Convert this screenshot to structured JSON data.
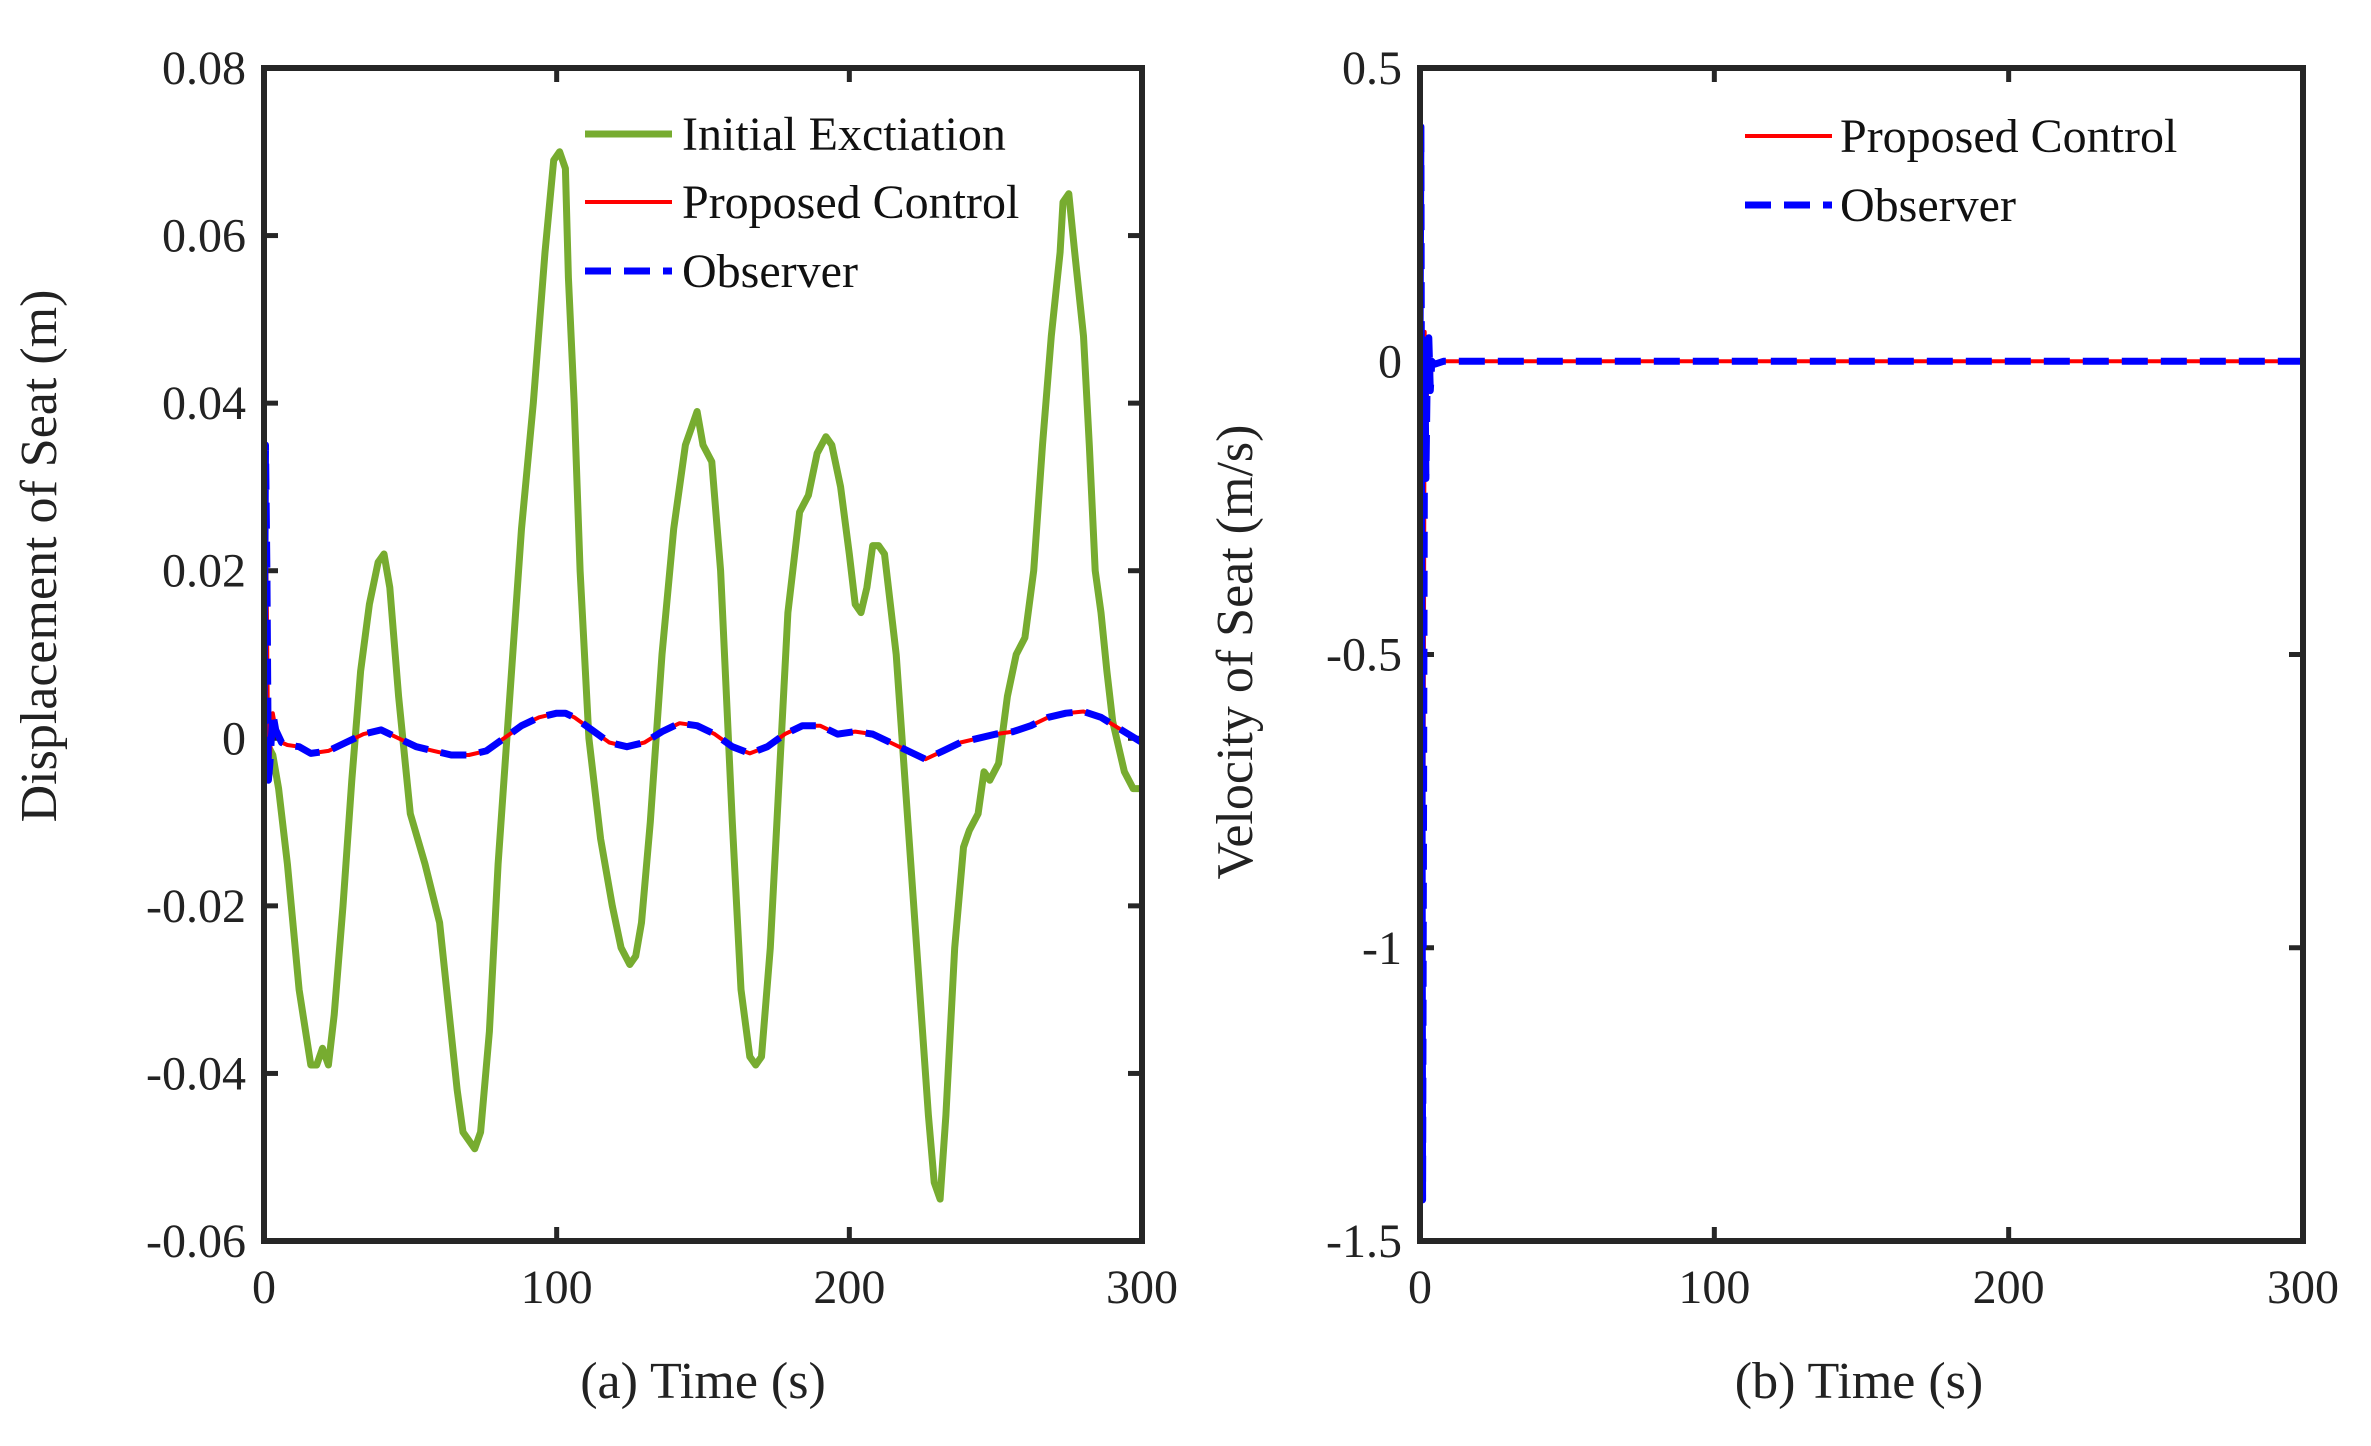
{
  "chart_data": [
    {
      "type": "line",
      "panel": "a",
      "xlabel": "(a) Time (s)",
      "ylabel": "Displacement of Seat (m)",
      "xlim": [
        0,
        300
      ],
      "ylim": [
        -0.06,
        0.08
      ],
      "xticks": [
        0,
        100,
        200,
        300
      ],
      "xtick_labels": [
        "0",
        "100",
        "200",
        "300"
      ],
      "yticks": [
        -0.06,
        -0.04,
        -0.02,
        0,
        0.02,
        0.04,
        0.06,
        0.08
      ],
      "ytick_labels": [
        "-0.06",
        "-0.04",
        "-0.02",
        "0",
        "0.02",
        "0.04",
        "0.06",
        "0.08"
      ],
      "legend_position": "top-right",
      "series": [
        {
          "name": "Initial Exctiation",
          "color": "#77ac30",
          "style": "solid",
          "x": [
            0,
            3,
            5,
            8,
            12,
            16,
            18,
            20,
            22,
            24,
            27,
            30,
            33,
            36,
            39,
            41,
            43,
            46,
            50,
            55,
            60,
            63,
            66,
            68,
            70,
            72,
            74,
            77,
            80,
            84,
            88,
            92,
            96,
            99,
            101,
            103,
            104,
            106,
            108,
            111,
            115,
            119,
            122,
            125,
            127,
            129,
            132,
            136,
            140,
            144,
            146,
            148,
            150,
            153,
            156,
            160,
            163,
            166,
            168,
            170,
            173,
            176,
            179,
            183,
            186,
            189,
            192,
            194,
            197,
            200,
            202,
            204,
            206,
            208,
            210,
            212,
            216,
            220,
            224,
            227,
            229,
            231,
            233,
            236,
            239,
            241,
            244,
            246,
            248,
            251,
            254,
            257,
            260,
            263,
            266,
            269,
            272,
            273,
            275,
            277,
            280,
            282,
            284,
            286,
            288,
            290,
            294,
            297,
            299
          ],
          "y": [
            0.0,
            -0.002,
            -0.006,
            -0.015,
            -0.03,
            -0.039,
            -0.039,
            -0.037,
            -0.039,
            -0.033,
            -0.02,
            -0.005,
            0.008,
            0.016,
            0.021,
            0.022,
            0.018,
            0.005,
            -0.009,
            -0.015,
            -0.022,
            -0.032,
            -0.042,
            -0.047,
            -0.048,
            -0.049,
            -0.047,
            -0.035,
            -0.015,
            0.005,
            0.025,
            0.04,
            0.058,
            0.069,
            0.07,
            0.068,
            0.055,
            0.04,
            0.02,
            0.0,
            -0.012,
            -0.02,
            -0.025,
            -0.027,
            -0.026,
            -0.022,
            -0.01,
            0.01,
            0.025,
            0.035,
            0.037,
            0.039,
            0.035,
            0.033,
            0.02,
            -0.01,
            -0.03,
            -0.038,
            -0.039,
            -0.038,
            -0.025,
            -0.005,
            0.015,
            0.027,
            0.029,
            0.034,
            0.036,
            0.035,
            0.03,
            0.022,
            0.016,
            0.015,
            0.018,
            0.023,
            0.023,
            0.022,
            0.01,
            -0.01,
            -0.03,
            -0.045,
            -0.053,
            -0.055,
            -0.045,
            -0.025,
            -0.013,
            -0.011,
            -0.009,
            -0.004,
            -0.005,
            -0.003,
            0.005,
            0.01,
            0.012,
            0.02,
            0.035,
            0.048,
            0.058,
            0.064,
            0.065,
            0.058,
            0.048,
            0.035,
            0.02,
            0.015,
            0.008,
            0.002,
            -0.004,
            -0.006,
            -0.006
          ]
        },
        {
          "name": "Proposed Control",
          "color": "#ff0000",
          "style": "solid",
          "x": [
            0,
            0.5,
            1,
            1.5,
            2,
            3,
            4,
            6,
            8,
            12,
            16,
            22,
            28,
            34,
            40,
            46,
            52,
            58,
            64,
            70,
            76,
            82,
            88,
            94,
            100,
            103,
            106,
            112,
            118,
            124,
            130,
            136,
            142,
            148,
            154,
            160,
            166,
            172,
            178,
            184,
            190,
            196,
            202,
            208,
            214,
            220,
            226,
            232,
            238,
            244,
            250,
            256,
            262,
            268,
            274,
            280,
            286,
            292,
            300
          ],
          "y": [
            0.0,
            0.03,
            0.015,
            -0.005,
            -0.002,
            0.003,
            0.001,
            -0.0005,
            -0.0008,
            -0.001,
            -0.0018,
            -0.0015,
            -0.0005,
            0.0005,
            0.001,
            0.0,
            -0.001,
            -0.0015,
            -0.002,
            -0.002,
            -0.0015,
            0.0,
            0.0015,
            0.0025,
            0.003,
            0.003,
            0.0025,
            0.001,
            -0.0005,
            -0.001,
            -0.0005,
            0.0008,
            0.0018,
            0.0015,
            0.0005,
            -0.001,
            -0.0018,
            -0.001,
            0.0005,
            0.0015,
            0.0015,
            0.0005,
            0.0008,
            0.0005,
            -0.0005,
            -0.0015,
            -0.0025,
            -0.0015,
            -0.0005,
            0.0,
            0.0005,
            0.0008,
            0.0015,
            0.0025,
            0.003,
            0.0032,
            0.0025,
            0.0012,
            -0.0005
          ]
        },
        {
          "name": "Observer",
          "color": "#0000ff",
          "style": "dashed",
          "x": [
            0,
            0.5,
            1,
            1.5,
            2,
            3,
            4,
            6,
            8,
            12,
            16,
            22,
            28,
            34,
            40,
            46,
            52,
            58,
            64,
            70,
            76,
            82,
            88,
            94,
            100,
            103,
            106,
            112,
            118,
            124,
            130,
            136,
            142,
            148,
            154,
            160,
            166,
            172,
            178,
            184,
            190,
            196,
            202,
            208,
            214,
            220,
            226,
            232,
            238,
            244,
            250,
            256,
            262,
            268,
            274,
            280,
            286,
            292,
            300
          ],
          "y": [
            0.0,
            0.035,
            0.02,
            -0.005,
            -0.003,
            0.003,
            0.001,
            -0.0005,
            -0.0008,
            -0.001,
            -0.0018,
            -0.0015,
            -0.0005,
            0.0005,
            0.001,
            0.0,
            -0.001,
            -0.0015,
            -0.002,
            -0.002,
            -0.0015,
            0.0,
            0.0015,
            0.0025,
            0.003,
            0.003,
            0.0025,
            0.001,
            -0.0005,
            -0.001,
            -0.0005,
            0.0008,
            0.0018,
            0.0015,
            0.0005,
            -0.001,
            -0.0018,
            -0.001,
            0.0005,
            0.0015,
            0.0015,
            0.0005,
            0.0008,
            0.0005,
            -0.0005,
            -0.0015,
            -0.0025,
            -0.0015,
            -0.0005,
            0.0,
            0.0005,
            0.0008,
            0.0015,
            0.0025,
            0.003,
            0.0032,
            0.0025,
            0.0012,
            -0.0005
          ]
        }
      ]
    },
    {
      "type": "line",
      "panel": "b",
      "xlabel": "(b) Time (s)",
      "ylabel": "Velocity of Seat (m/s)",
      "xlim": [
        0,
        300
      ],
      "ylim": [
        -1.5,
        0.5
      ],
      "xticks": [
        0,
        100,
        200,
        300
      ],
      "xtick_labels": [
        "0",
        "100",
        "200",
        "300"
      ],
      "yticks": [
        -1.5,
        -1,
        -0.5,
        0,
        0.5
      ],
      "ytick_labels": [
        "-1.5",
        "-1",
        "-0.5",
        "0",
        "0.5"
      ],
      "legend_position": "top-right",
      "series": [
        {
          "name": "Proposed Control",
          "color": "#ff0000",
          "style": "solid",
          "x": [
            0,
            0.3,
            0.6,
            0.9,
            1.2,
            1.6,
            2.0,
            2.5,
            3.0,
            3.5,
            4.0,
            5,
            8,
            20,
            60,
            100,
            150,
            200,
            250,
            300
          ],
          "y": [
            0,
            0.4,
            -0.4,
            -1.43,
            -0.8,
            0.05,
            -0.2,
            0.0,
            0.04,
            -0.05,
            0.0,
            -0.005,
            0.0,
            0.0,
            0.0,
            0.0,
            0.0,
            0.0,
            0.0,
            0.0
          ]
        },
        {
          "name": "Observer",
          "color": "#0000ff",
          "style": "dashed",
          "x": [
            0,
            0.3,
            0.6,
            0.9,
            1.2,
            1.6,
            2.0,
            2.5,
            3.0,
            3.5,
            4.0,
            5,
            8,
            20,
            60,
            100,
            150,
            200,
            250,
            300
          ],
          "y": [
            0,
            0.4,
            -0.4,
            -1.43,
            -0.8,
            0.05,
            -0.2,
            0.0,
            0.04,
            -0.05,
            0.0,
            -0.005,
            0.0,
            0.0,
            0.0,
            0.0,
            0.0,
            0.0,
            0.0,
            0.0
          ]
        }
      ]
    }
  ]
}
